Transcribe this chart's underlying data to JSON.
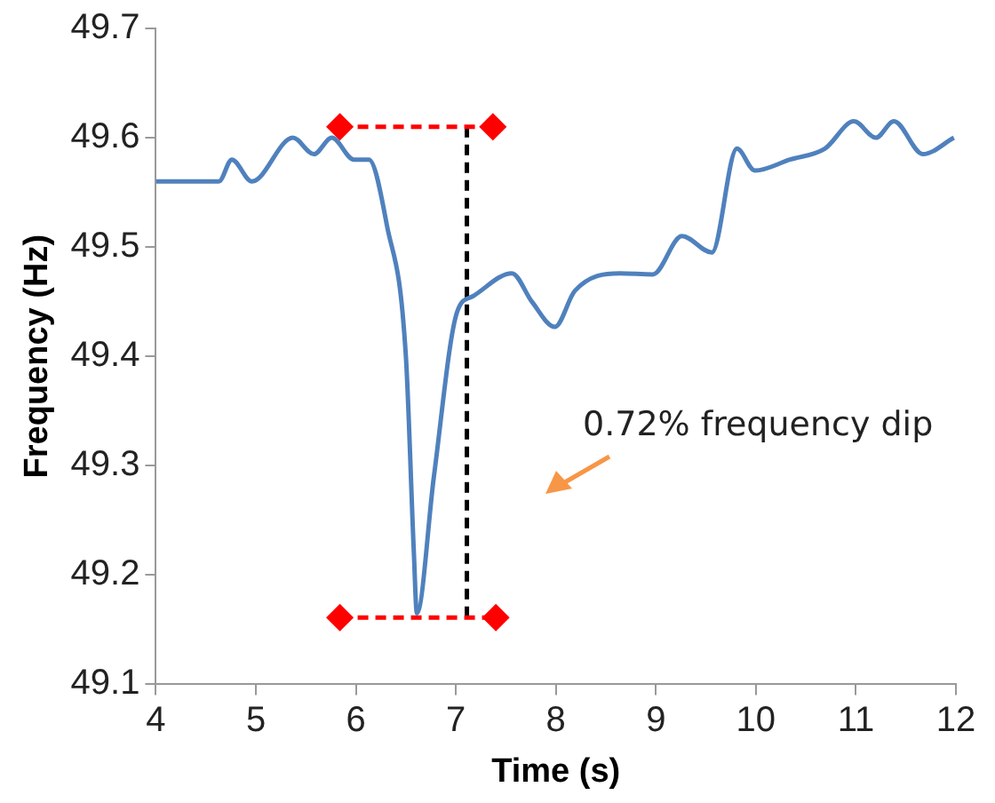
{
  "chart_data": {
    "type": "line",
    "xlabel": "Time (s)",
    "ylabel": "Frequency (Hz)",
    "xlim": [
      4,
      12
    ],
    "xticks": [
      4,
      5,
      6,
      7,
      8,
      9,
      10,
      11,
      12
    ],
    "ylim": [
      49.1,
      49.7
    ],
    "yticks": [
      49.1,
      49.2,
      49.3,
      49.4,
      49.5,
      49.6,
      49.7
    ],
    "grid": false,
    "legend": false,
    "annotations": [
      "0.72% frequency dip"
    ],
    "series": [
      {
        "color": "#4f81bd",
        "marker": "none",
        "line_style": "solid",
        "x": [
          4,
          4.53,
          4.63,
          4.76,
          4.96,
          5.37,
          5.58,
          5.76,
          5.98,
          6.13,
          6.31,
          6.5,
          6.58,
          6.61,
          6.78,
          7.01,
          7.17,
          7.56,
          7.76,
          7.99,
          8.19,
          8.64,
          8.97,
          9.26,
          9.56,
          9.81,
          9.99,
          10.34,
          10.69,
          10.98,
          11.2,
          11.38,
          11.67,
          11.98
        ],
        "values": [
          49.56,
          49.56,
          49.56,
          49.58,
          49.56,
          49.6,
          49.585,
          49.6,
          49.58,
          49.58,
          49.52,
          49.4,
          49.22,
          49.165,
          49.29,
          49.44,
          49.455,
          49.476,
          49.45,
          49.427,
          49.46,
          49.476,
          49.475,
          49.51,
          49.495,
          49.59,
          49.57,
          49.58,
          49.59,
          49.615,
          49.6,
          49.615,
          49.585,
          49.6
        ]
      },
      {
        "color": "#ff0000",
        "marker": "diamond",
        "line_style": "dashed",
        "x": [
          5.84,
          7.37
        ],
        "values": [
          49.61,
          49.61
        ]
      },
      {
        "color": "#ff0000",
        "marker": "diamond",
        "line_style": "dashed",
        "x": [
          5.84,
          7.4
        ],
        "values": [
          49.161,
          49.161
        ]
      },
      {
        "color": "#000000",
        "marker": "none",
        "line_style": "dashed",
        "x": [
          7.11,
          7.11
        ],
        "values": [
          49.61,
          49.161
        ]
      }
    ]
  }
}
